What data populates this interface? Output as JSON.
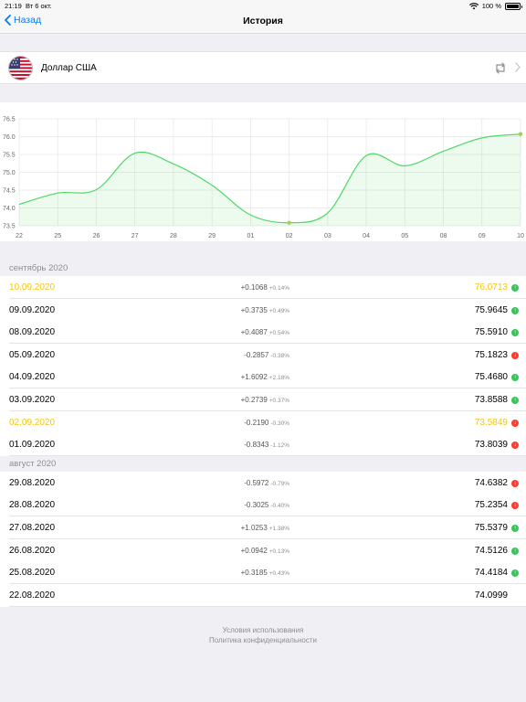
{
  "status": {
    "time": "21:19",
    "date": "Вт 6 окт.",
    "battery": "100 %"
  },
  "nav": {
    "back_label": "Назад",
    "title": "История"
  },
  "currency": {
    "name": "Доллар США",
    "flag": "us-flag-icon"
  },
  "colors": {
    "accent": "#007aff",
    "line": "#4cd964",
    "highlight": "#f5c518",
    "up": "#34c759",
    "down": "#ff3b30"
  },
  "chart_data": {
    "type": "area",
    "x_labels": [
      "22",
      "25",
      "26",
      "27",
      "28",
      "29",
      "01",
      "02",
      "03",
      "04",
      "05",
      "08",
      "09",
      "10"
    ],
    "y_ticks": [
      "76.5",
      "76.0",
      "75.5",
      "75.0",
      "74.5",
      "74.0",
      "73.5"
    ],
    "ylim": [
      73.5,
      76.5
    ],
    "values": [
      74.0999,
      74.4184,
      74.5126,
      75.5379,
      75.2354,
      74.6382,
      73.8039,
      73.5849,
      73.8588,
      75.468,
      75.1823,
      75.591,
      75.9645,
      76.0713
    ],
    "grid": true,
    "marked_points": [
      "02",
      "10"
    ]
  },
  "sections": [
    {
      "title": "сентябрь 2020",
      "rows": [
        {
          "date": "10.09.2020",
          "change": "+0.1068",
          "pct": "+0.14%",
          "value": "76.0713",
          "dir": "up",
          "highlight": true
        },
        {
          "date": "09.09.2020",
          "change": "+0.3735",
          "pct": "+0.49%",
          "value": "75.9645",
          "dir": "up",
          "highlight": false
        },
        {
          "date": "08.09.2020",
          "change": "+0.4087",
          "pct": "+0.54%",
          "value": "75.5910",
          "dir": "up",
          "highlight": false
        },
        {
          "date": "05.09.2020",
          "change": "-0.2857",
          "pct": "-0.38%",
          "value": "75.1823",
          "dir": "down",
          "highlight": false
        },
        {
          "date": "04.09.2020",
          "change": "+1.6092",
          "pct": "+2.18%",
          "value": "75.4680",
          "dir": "up",
          "highlight": false
        },
        {
          "date": "03.09.2020",
          "change": "+0.2739",
          "pct": "+0.37%",
          "value": "73.8588",
          "dir": "up",
          "highlight": false
        },
        {
          "date": "02.09.2020",
          "change": "-0.2190",
          "pct": "-0.30%",
          "value": "73.5849",
          "dir": "down",
          "highlight": true
        },
        {
          "date": "01.09.2020",
          "change": "-0.8343",
          "pct": "-1.12%",
          "value": "73.8039",
          "dir": "down",
          "highlight": false
        }
      ]
    },
    {
      "title": "август 2020",
      "rows": [
        {
          "date": "29.08.2020",
          "change": "-0.5972",
          "pct": "-0.79%",
          "value": "74.6382",
          "dir": "down",
          "highlight": false
        },
        {
          "date": "28.08.2020",
          "change": "-0.3025",
          "pct": "-0.40%",
          "value": "75.2354",
          "dir": "down",
          "highlight": false
        },
        {
          "date": "27.08.2020",
          "change": "+1.0253",
          "pct": "+1.38%",
          "value": "75.5379",
          "dir": "up",
          "highlight": false
        },
        {
          "date": "26.08.2020",
          "change": "+0.0942",
          "pct": "+0.13%",
          "value": "74.5126",
          "dir": "up",
          "highlight": false
        },
        {
          "date": "25.08.2020",
          "change": "+0.3185",
          "pct": "+0.43%",
          "value": "74.4184",
          "dir": "up",
          "highlight": false
        },
        {
          "date": "22.08.2020",
          "change": "",
          "pct": "",
          "value": "74.0999",
          "dir": "",
          "highlight": false
        }
      ]
    }
  ],
  "footer": {
    "terms": "Условия использования",
    "privacy": "Политика конфиденциальности"
  }
}
